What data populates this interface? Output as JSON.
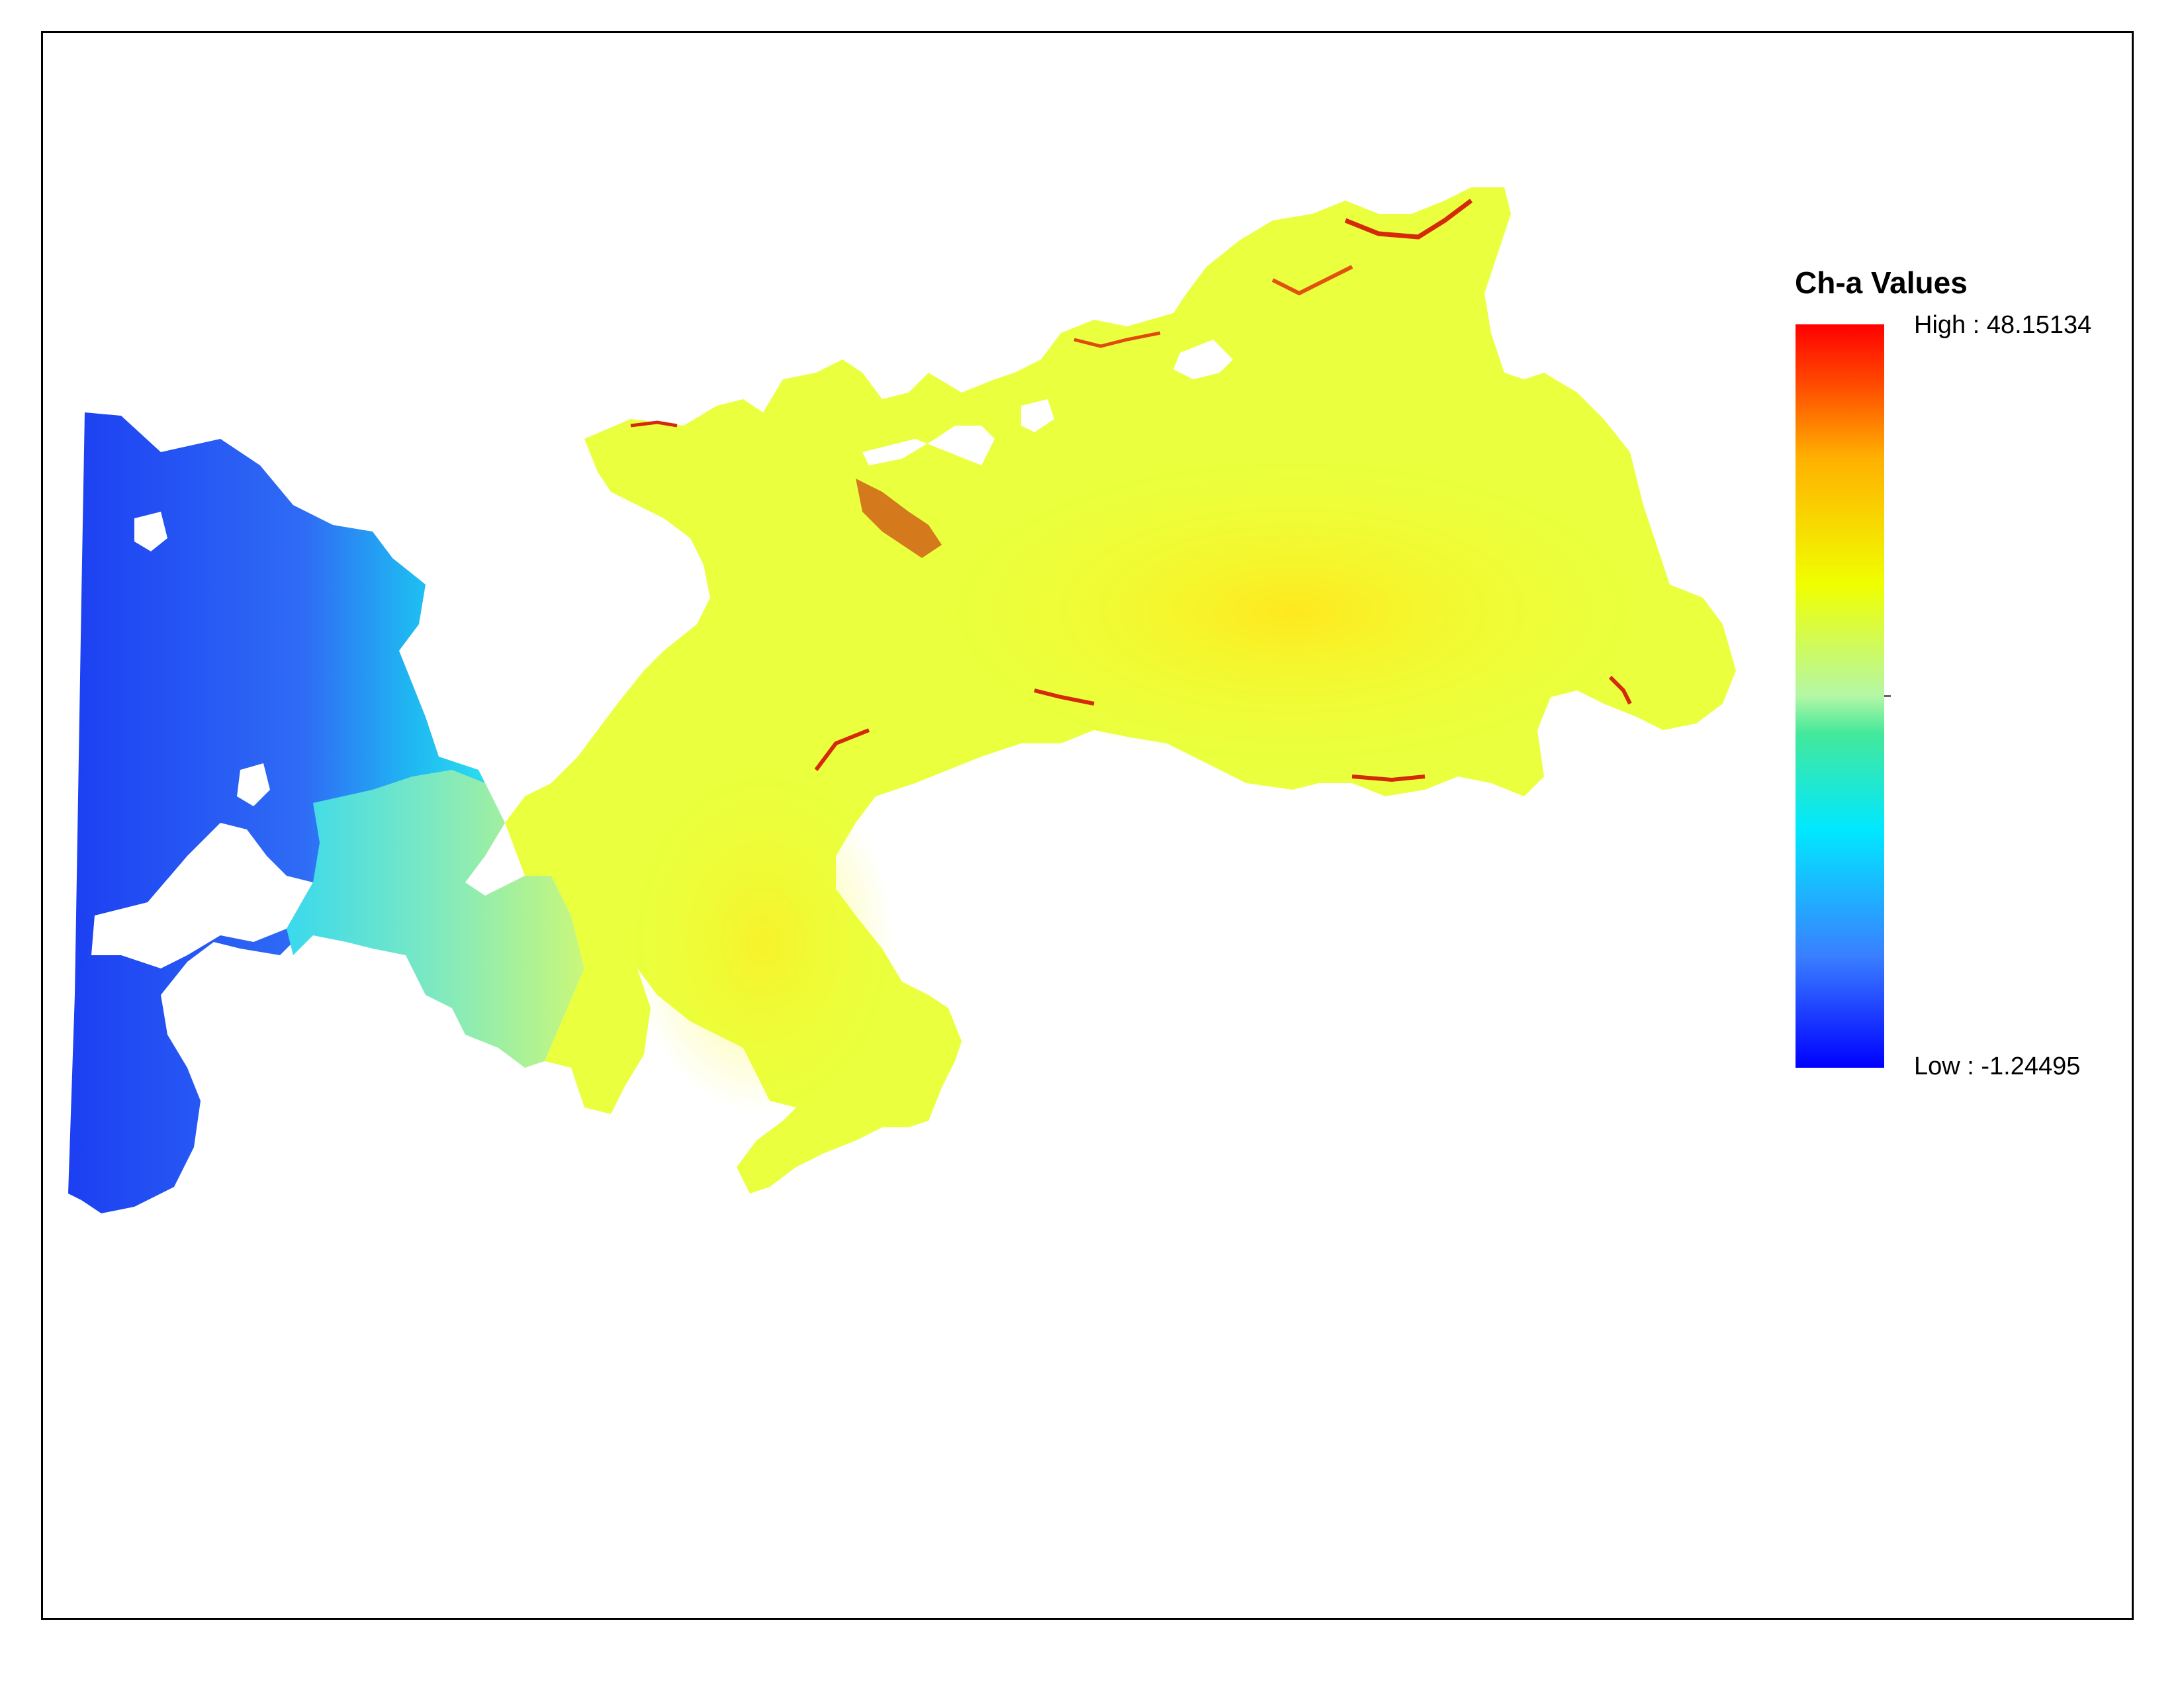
{
  "legend": {
    "title": "Ch-a Values",
    "high_label": "High : 48.15134",
    "low_label": "Low : -1.24495",
    "high_value": 48.15134,
    "low_value": -1.24495,
    "colormap": [
      "#0000ff",
      "#3a7fff",
      "#00e8ff",
      "#44e89a",
      "#b4f7a6",
      "#f0ff00",
      "#ffb000",
      "#ff4a00",
      "#ff0000"
    ]
  },
  "colors": {
    "frame_border": "#000000",
    "west_region": "#2a5cf2",
    "west_transition": "#22d8f0",
    "channel": "#7de8c2",
    "main_region": "#eaff3a",
    "central_core": "#fff13a",
    "hotspot": "#d42a0a"
  }
}
